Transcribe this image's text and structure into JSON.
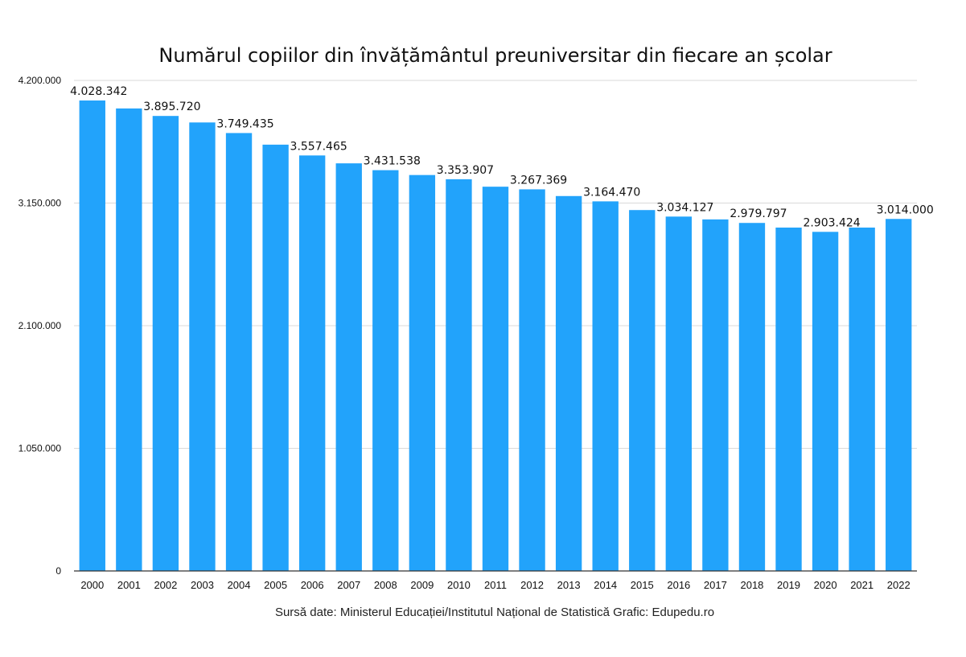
{
  "chart_data": {
    "type": "bar",
    "title": "Numărul copiilor din învățământul preuniversitar din fiecare an școlar",
    "xlabel": "",
    "ylabel": "",
    "ylim": [
      0,
      4200000
    ],
    "y_ticks": [
      0,
      1050000,
      2100000,
      3150000,
      4200000
    ],
    "y_tick_labels": [
      "0",
      "1.050.000",
      "2.100.000",
      "3.150.000",
      "4.200.000"
    ],
    "grid": true,
    "legend": "none",
    "bar_color": "#22a3fb",
    "categories": [
      "2000",
      "2001",
      "2002",
      "2003",
      "2004",
      "2005",
      "2006",
      "2007",
      "2008",
      "2009",
      "2010",
      "2011",
      "2012",
      "2013",
      "2014",
      "2015",
      "2016",
      "2017",
      "2018",
      "2019",
      "2020",
      "2021",
      "2022"
    ],
    "values": [
      4028342,
      3960000,
      3895720,
      3840000,
      3749435,
      3650000,
      3557465,
      3490000,
      3431538,
      3390000,
      3353907,
      3290000,
      3267369,
      3210000,
      3164470,
      3090000,
      3034127,
      3010000,
      2979797,
      2940000,
      2903424,
      2940000,
      3014000
    ],
    "data_labels": [
      {
        "category": "2000",
        "text": "4.028.342"
      },
      {
        "category": "2002",
        "text": "3.895.720"
      },
      {
        "category": "2004",
        "text": "3.749.435"
      },
      {
        "category": "2006",
        "text": "3.557.465"
      },
      {
        "category": "2008",
        "text": "3.431.538"
      },
      {
        "category": "2010",
        "text": "3.353.907"
      },
      {
        "category": "2012",
        "text": "3.267.369"
      },
      {
        "category": "2014",
        "text": "3.164.470"
      },
      {
        "category": "2016",
        "text": "3.034.127"
      },
      {
        "category": "2018",
        "text": "2.979.797"
      },
      {
        "category": "2020",
        "text": "2.903.424"
      },
      {
        "category": "2022",
        "text": "3.014.000"
      }
    ],
    "source": "Sursă date: Ministerul Educației/Institutul Național de Statistică Grafic: Edupedu.ro"
  }
}
